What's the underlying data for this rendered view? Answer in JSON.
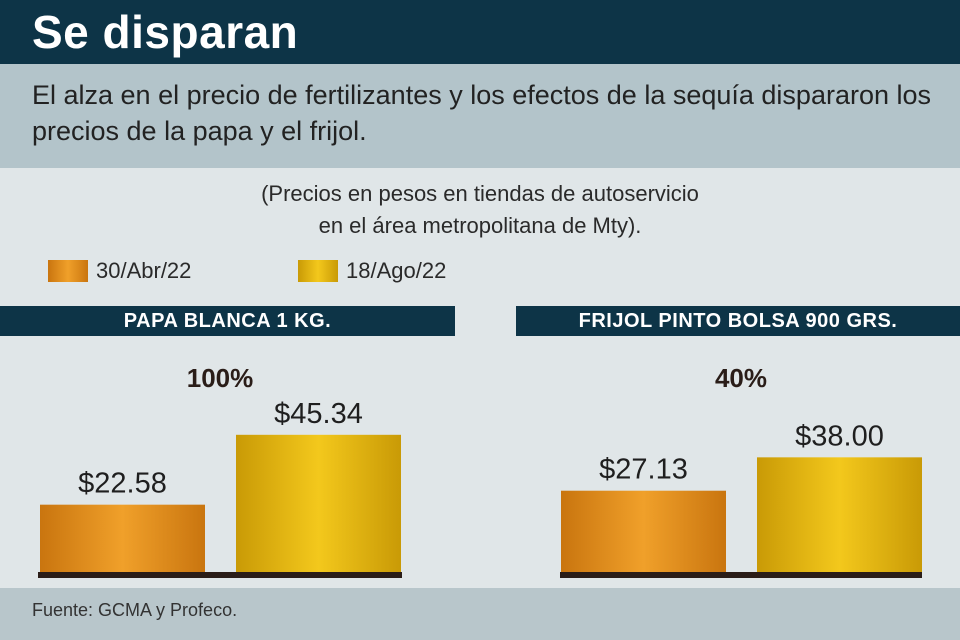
{
  "header": {
    "title": "Se disparan"
  },
  "subtitle": "El alza en el precio de fertilizantes y los efectos de la sequía dispararon los precios de la papa y el frijol.",
  "note": {
    "line1": "(Precios en pesos en tiendas de autoservicio",
    "line2": "en el área metropolitana de Mty)."
  },
  "legend": [
    {
      "label": "30/Abr/22",
      "color": "#e08d18"
    },
    {
      "label": "18/Ago/22",
      "color": "#e2b40c"
    }
  ],
  "colors": {
    "baseline": "#2a1d18",
    "header_bg": "#0d3447"
  },
  "chart_data": [
    {
      "type": "bar",
      "title": "PAPA BLANCA 1 KG.",
      "categories": [
        "30/Abr/22",
        "18/Ago/22"
      ],
      "values": [
        22.58,
        45.34
      ],
      "value_labels": [
        "$22.58",
        "$45.34"
      ],
      "change_label": "100%",
      "ylim": [
        0,
        60
      ],
      "xlabel": "",
      "ylabel": ""
    },
    {
      "type": "bar",
      "title": "FRIJOL PINTO BOLSA 900 GRS.",
      "categories": [
        "30/Abr/22",
        "18/Ago/22"
      ],
      "values": [
        27.13,
        38.0
      ],
      "value_labels": [
        "$27.13",
        "$38.00"
      ],
      "change_label": "40%",
      "ylim": [
        0,
        60
      ],
      "xlabel": "",
      "ylabel": ""
    }
  ],
  "source": "Fuente: GCMA y Profeco."
}
